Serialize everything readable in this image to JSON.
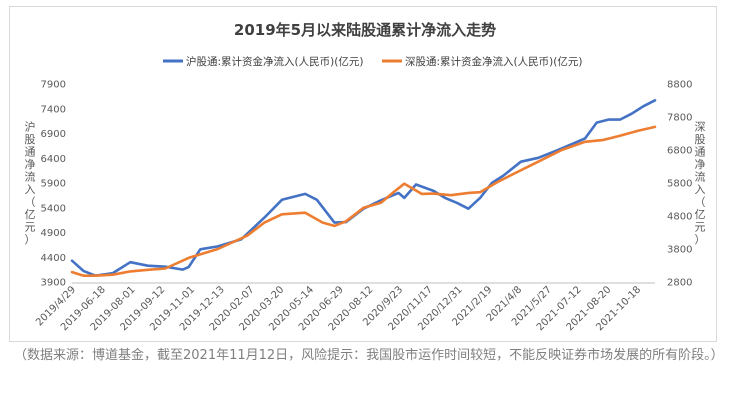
{
  "chart_data": {
    "type": "line",
    "title": "2019年5月以来陆股通累计净流入走势",
    "ylabel_left": "沪股通净流入（亿元）",
    "ylabel_right": "深股通净流入（亿元）",
    "ylim_left": [
      3900,
      7900
    ],
    "ylim_right": [
      2800,
      8800
    ],
    "yticks_left": [
      "3900",
      "4400",
      "4900",
      "5400",
      "5900",
      "6400",
      "6900",
      "7400",
      "7900"
    ],
    "yticks_right": [
      "2800",
      "3800",
      "4800",
      "5800",
      "6800",
      "7800",
      "8800"
    ],
    "x_tick_labels": [
      "2019/4/29",
      "2019-06-18",
      "2019-08-01",
      "2019-09-12",
      "2019-11-01",
      "2019-12-13",
      "2020-02-07",
      "2020-03-20",
      "2020-05-14",
      "2020-06-29",
      "2020-08-12",
      "2020/9/23",
      "2020/11/17",
      "2020/12/31",
      "2021/2/19",
      "2021/4/8",
      "2021/5/27",
      "2021-07-12",
      "2021-08-20",
      "2021-10-18"
    ],
    "legend_position": "top",
    "grid": false,
    "series": [
      {
        "name": "沪股通:累计资金净流入(人民币)(亿元)",
        "axis": "left",
        "color": "#4472C4",
        "x": [
          0,
          0.02,
          0.04,
          0.07,
          0.1,
          0.13,
          0.16,
          0.19,
          0.2,
          0.22,
          0.25,
          0.29,
          0.33,
          0.36,
          0.4,
          0.42,
          0.45,
          0.47,
          0.5,
          0.53,
          0.56,
          0.57,
          0.59,
          0.62,
          0.64,
          0.66,
          0.68,
          0.7,
          0.72,
          0.74,
          0.77,
          0.8,
          0.83,
          0.86,
          0.88,
          0.9,
          0.92,
          0.94,
          0.96,
          0.98,
          1.0
        ],
        "values": [
          4330,
          4120,
          4030,
          4080,
          4300,
          4230,
          4210,
          4150,
          4200,
          4560,
          4620,
          4760,
          5200,
          5560,
          5680,
          5560,
          5100,
          5110,
          5380,
          5550,
          5700,
          5600,
          5870,
          5740,
          5600,
          5500,
          5380,
          5600,
          5900,
          6050,
          6330,
          6410,
          6550,
          6700,
          6800,
          7120,
          7180,
          7180,
          7300,
          7450,
          7570
        ]
      },
      {
        "name": "深股通:累计资金净流入(人民币)(亿元)",
        "axis": "right",
        "color": "#ED7D31",
        "x": [
          0,
          0.02,
          0.04,
          0.07,
          0.1,
          0.13,
          0.16,
          0.2,
          0.25,
          0.3,
          0.33,
          0.36,
          0.4,
          0.43,
          0.45,
          0.47,
          0.5,
          0.53,
          0.55,
          0.57,
          0.6,
          0.62,
          0.65,
          0.68,
          0.7,
          0.73,
          0.76,
          0.8,
          0.84,
          0.88,
          0.91,
          0.94,
          0.97,
          1.0
        ],
        "values": [
          3100,
          2990,
          2990,
          3020,
          3120,
          3170,
          3210,
          3530,
          3800,
          4200,
          4600,
          4850,
          4900,
          4600,
          4500,
          4640,
          5050,
          5200,
          5500,
          5780,
          5470,
          5480,
          5430,
          5500,
          5520,
          5830,
          6100,
          6450,
          6800,
          7050,
          7100,
          7230,
          7380,
          7500
        ]
      }
    ]
  },
  "caption": "（数据来源：博道基金，截至2021年11月12日，风险提示：我国股市运作时间较短，不能反映证券市场发展的所有阶段。）"
}
